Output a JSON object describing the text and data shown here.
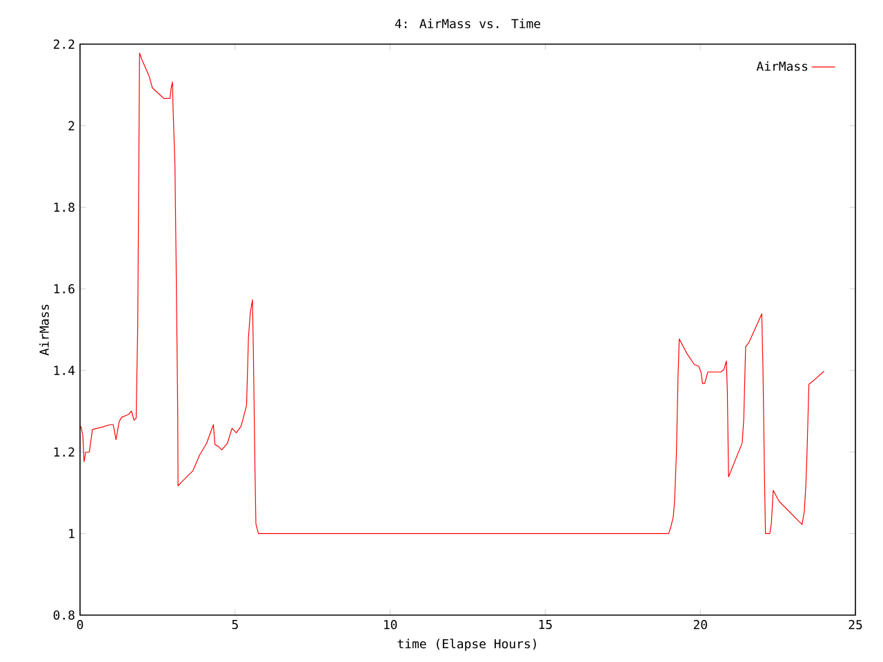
{
  "chart_data": {
    "type": "line",
    "title": "4: AirMass vs. Time",
    "xlabel": "time (Elapse Hours)",
    "ylabel": "AirMass",
    "xlim": [
      0,
      25
    ],
    "ylim": [
      0.8,
      2.2
    ],
    "xticks": [
      0,
      5,
      10,
      15,
      20,
      25
    ],
    "yticks": [
      0.8,
      1,
      1.2,
      1.4,
      1.6,
      1.8,
      2,
      2.2
    ],
    "legend": "top right",
    "marker": "none",
    "line_style": "solid",
    "grid": false,
    "x": [
      0.03,
      0.09,
      0.13,
      0.18,
      0.3,
      0.4,
      0.71,
      0.97,
      1.07,
      1.16,
      1.26,
      1.34,
      1.56,
      1.66,
      1.74,
      1.81,
      1.86,
      1.9,
      1.92,
      2.0,
      2.23,
      2.33,
      2.6,
      2.7,
      2.9,
      2.94,
      2.98,
      3.0,
      3.06,
      3.1,
      3.15,
      3.16,
      3.27,
      3.64,
      3.86,
      4.08,
      4.3,
      4.35,
      4.45,
      4.57,
      4.75,
      4.9,
      5.04,
      5.19,
      5.27,
      5.37,
      5.43,
      5.49,
      5.56,
      5.59,
      5.64,
      5.67,
      5.75,
      18.98,
      19.06,
      19.13,
      19.17,
      19.23,
      19.28,
      19.32,
      19.57,
      19.8,
      19.95,
      20.02,
      20.07,
      20.14,
      20.24,
      20.66,
      20.76,
      20.84,
      20.87,
      20.91,
      21.35,
      21.4,
      21.46,
      21.57,
      21.87,
      21.98,
      22.02,
      22.07,
      22.1,
      22.24,
      22.29,
      22.35,
      22.54,
      23.28,
      23.35,
      23.4,
      23.44,
      23.5,
      23.62,
      23.99
    ],
    "series": [
      {
        "name": "AirMass",
        "color": "#ff0000",
        "values": [
          1.263,
          1.24,
          1.176,
          1.199,
          1.2,
          1.255,
          1.261,
          1.267,
          1.267,
          1.23,
          1.274,
          1.285,
          1.292,
          1.3,
          1.278,
          1.283,
          1.508,
          1.953,
          2.178,
          2.161,
          2.121,
          2.093,
          2.074,
          2.067,
          2.067,
          2.093,
          2.107,
          2.043,
          1.904,
          1.654,
          1.3,
          1.117,
          1.126,
          1.154,
          1.193,
          1.221,
          1.267,
          1.218,
          1.214,
          1.205,
          1.221,
          1.258,
          1.247,
          1.263,
          1.285,
          1.315,
          1.48,
          1.542,
          1.573,
          1.441,
          1.162,
          1.024,
          1.0,
          1.0,
          1.019,
          1.042,
          1.081,
          1.199,
          1.382,
          1.477,
          1.441,
          1.415,
          1.41,
          1.396,
          1.368,
          1.368,
          1.396,
          1.396,
          1.402,
          1.423,
          1.351,
          1.139,
          1.222,
          1.281,
          1.458,
          1.469,
          1.52,
          1.539,
          1.402,
          1.132,
          1.0,
          1.0,
          1.025,
          1.106,
          1.079,
          1.022,
          1.053,
          1.115,
          1.199,
          1.366,
          1.373,
          1.398
        ]
      }
    ]
  }
}
